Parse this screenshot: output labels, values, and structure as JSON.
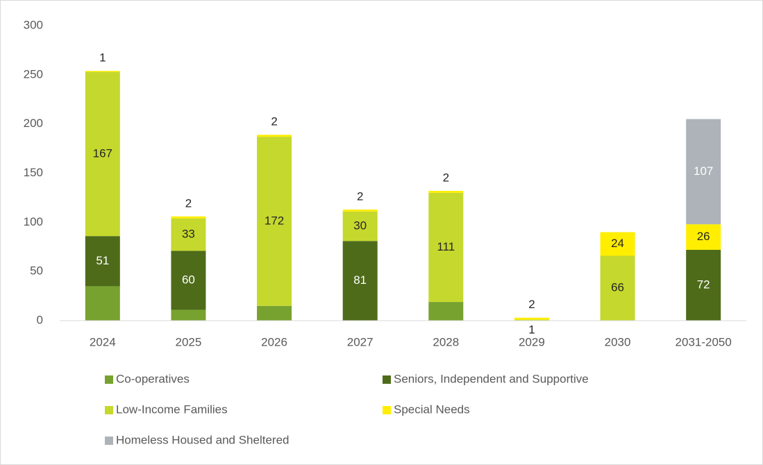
{
  "chart_data": {
    "type": "stacked_bar",
    "categories": [
      "2024",
      "2025",
      "2026",
      "2027",
      "2028",
      "2029",
      "2030",
      "2031-2050"
    ],
    "series": [
      {
        "name": "Co-operatives",
        "color": "#77a22f",
        "labels": false,
        "values": [
          35,
          11,
          15,
          0,
          19,
          0,
          0,
          0
        ]
      },
      {
        "name": "Seniors, Independent and Supportive",
        "color": "#4e6b1a",
        "labels": true,
        "label_color": "#ffffff",
        "values": [
          51,
          60,
          0,
          81,
          0,
          0,
          0,
          72
        ]
      },
      {
        "name": "Low-Income Families",
        "color": "#c5d82d",
        "labels": true,
        "label_color": "#262626",
        "values": [
          167,
          33,
          172,
          30,
          111,
          1,
          66,
          0
        ]
      },
      {
        "name": "Special Needs",
        "color": "#ffee00",
        "labels": true,
        "label_color": "#262626",
        "values": [
          1,
          2,
          2,
          2,
          2,
          2,
          24,
          26
        ]
      },
      {
        "name": "Homeless Housed and Sheltered",
        "color": "#adb3b8",
        "labels": true,
        "label_color": "#ffffff",
        "values": [
          0,
          0,
          0,
          0,
          0,
          0,
          0,
          107
        ]
      }
    ],
    "ylim": [
      0,
      300
    ],
    "yticks": [
      0,
      50,
      100,
      150,
      200,
      250,
      300
    ],
    "grid": false
  }
}
